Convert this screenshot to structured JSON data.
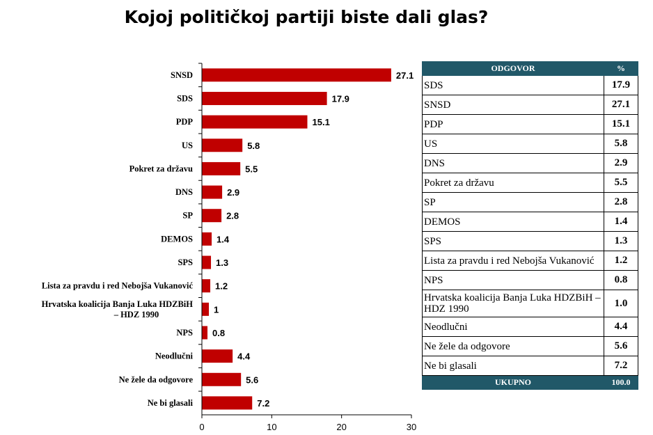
{
  "title": "Kojoj političkoj partiji biste dali glas?",
  "colors": {
    "bar": "#c00000",
    "table_header": "#215868"
  },
  "chart_data": {
    "type": "bar",
    "orientation": "horizontal",
    "categories": [
      "SNSD",
      "SDS",
      "PDP",
      "US",
      "Pokret za državu",
      "DNS",
      "SP",
      "DEMOS",
      "SPS",
      "Lista za pravdu i red Nebojša Vukanović",
      "Hrvatska koalicija  Banja Luka HDZBiH – HDZ 1990",
      "NPS",
      "Neodlučni",
      "Ne žele da odgovore",
      "Ne bi glasali"
    ],
    "category_lines": [
      [
        "SNSD"
      ],
      [
        "SDS"
      ],
      [
        "PDP"
      ],
      [
        "US"
      ],
      [
        "Pokret za državu"
      ],
      [
        "DNS"
      ],
      [
        "SP"
      ],
      [
        "DEMOS"
      ],
      [
        "SPS"
      ],
      [
        "Lista za pravdu i red Nebojša Vukanović"
      ],
      [
        "Hrvatska koalicija  Banja Luka HDZBiH",
        "– HDZ 1990"
      ],
      [
        "NPS"
      ],
      [
        "Neodlučni"
      ],
      [
        "Ne žele da odgovore"
      ],
      [
        "Ne bi glasali"
      ]
    ],
    "values": [
      27.1,
      17.9,
      15.1,
      5.8,
      5.5,
      2.9,
      2.8,
      1.4,
      1.3,
      1.2,
      1,
      0.8,
      4.4,
      5.6,
      7.2
    ],
    "value_labels": [
      "27.1",
      "17.9",
      "15.1",
      "5.8",
      "5.5",
      "2.9",
      "2.8",
      "1.4",
      "1.3",
      "1.2",
      "1",
      "0.8",
      "4.4",
      "5.6",
      "7.2"
    ],
    "xlim": [
      0,
      30
    ],
    "xticks": [
      0,
      10,
      20,
      30
    ],
    "grid": false,
    "legend": "none"
  },
  "table": {
    "headers": [
      "ODGOVOR",
      "%"
    ],
    "rows": [
      {
        "name": "SDS",
        "pct": "17.9"
      },
      {
        "name": "SNSD",
        "pct": "27.1"
      },
      {
        "name": "PDP",
        "pct": "15.1"
      },
      {
        "name": "US",
        "pct": "5.8"
      },
      {
        "name": "DNS",
        "pct": "2.9"
      },
      {
        "name": "Pokret za državu",
        "pct": "5.5"
      },
      {
        "name": "SP",
        "pct": "2.8"
      },
      {
        "name": "DEMOS",
        "pct": "1.4"
      },
      {
        "name": "SPS",
        "pct": "1.3"
      },
      {
        "name": "Lista za pravdu i red Nebojša Vukanović",
        "pct": "1.2"
      },
      {
        "name": "NPS",
        "pct": "0.8"
      },
      {
        "name": "Hrvatska koalicija Banja Luka HDZBiH – HDZ 1990",
        "pct": "1.0"
      },
      {
        "name": "Neodlučni",
        "pct": "4.4"
      },
      {
        "name": "Ne žele da odgovore",
        "pct": "5.6"
      },
      {
        "name": "Ne bi glasali",
        "pct": "7.2"
      }
    ],
    "footer": {
      "label": "UKUPNO",
      "value": "100.0"
    }
  }
}
